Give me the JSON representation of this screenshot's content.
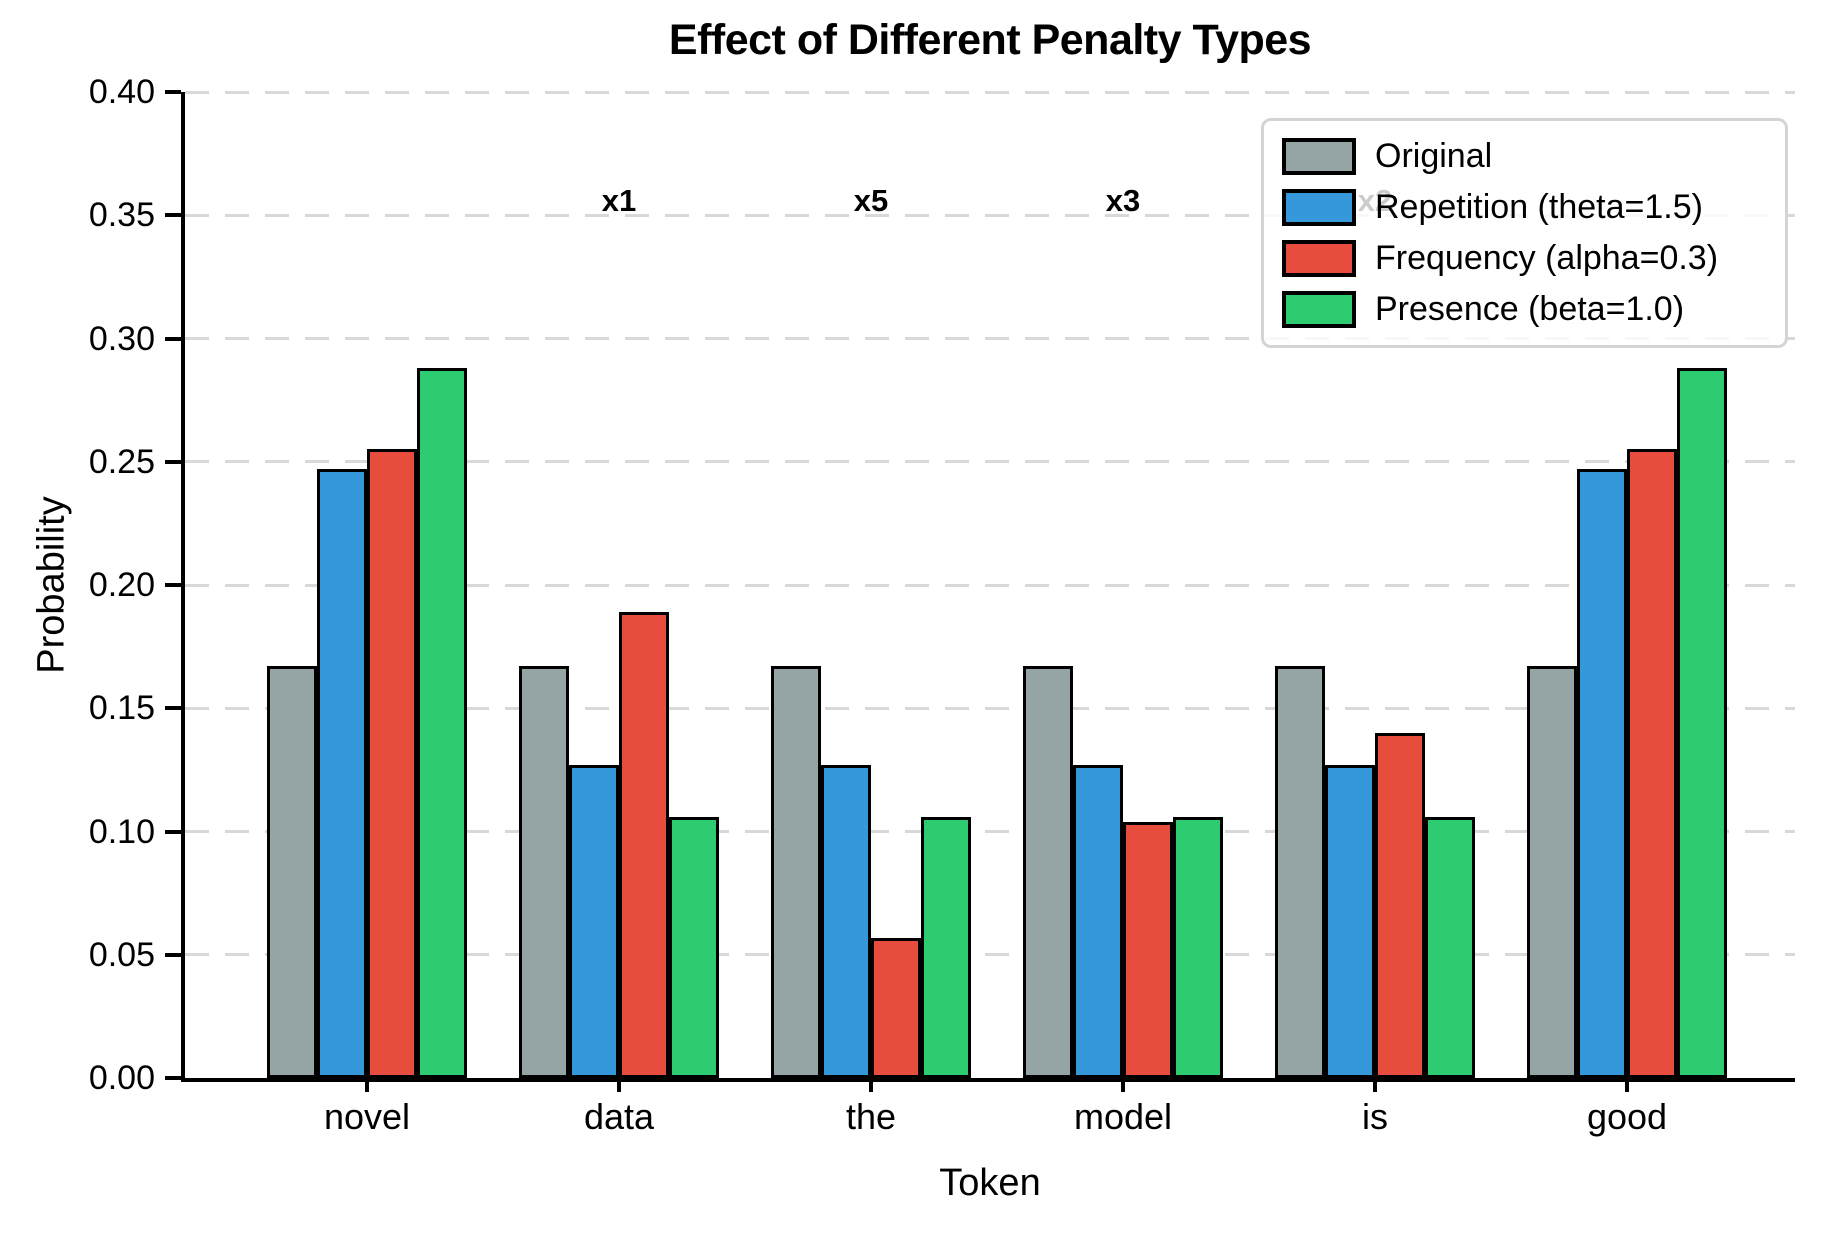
{
  "chart_data": {
    "type": "bar",
    "title": "Effect of Different Penalty Types",
    "xlabel": "Token",
    "ylabel": "Probability",
    "categories": [
      "novel",
      "data",
      "the",
      "model",
      "is",
      "good"
    ],
    "series": [
      {
        "name": "Original",
        "color": "#95a5a6",
        "values": [
          0.167,
          0.167,
          0.167,
          0.167,
          0.167,
          0.167
        ]
      },
      {
        "name": "Repetition (theta=1.5)",
        "color": "#3498db",
        "values": [
          0.247,
          0.127,
          0.127,
          0.127,
          0.127,
          0.247
        ]
      },
      {
        "name": "Frequency (alpha=0.3)",
        "color": "#e74c3c",
        "values": [
          0.255,
          0.189,
          0.057,
          0.104,
          0.14,
          0.255
        ]
      },
      {
        "name": "Presence (beta=1.0)",
        "color": "#2ecc71",
        "values": [
          0.288,
          0.106,
          0.106,
          0.106,
          0.106,
          0.288
        ]
      }
    ],
    "annotations": [
      {
        "label": "x1",
        "category": "data",
        "y": 0.355
      },
      {
        "label": "x5",
        "category": "the",
        "y": 0.355
      },
      {
        "label": "x3",
        "category": "model",
        "y": 0.355
      },
      {
        "label": "x2",
        "category": "is",
        "y": 0.355
      }
    ],
    "ylim": [
      0.0,
      0.4
    ],
    "ytick_step": 0.05,
    "y_tick_labels": [
      "0.00",
      "0.05",
      "0.10",
      "0.15",
      "0.20",
      "0.25",
      "0.30",
      "0.35",
      "0.40"
    ],
    "grid": "horizontal dashed",
    "grid_color": "#d9d9d9",
    "legend_position": "upper right",
    "bar_edge_color": "#000000",
    "annotation_color": "#000000"
  }
}
